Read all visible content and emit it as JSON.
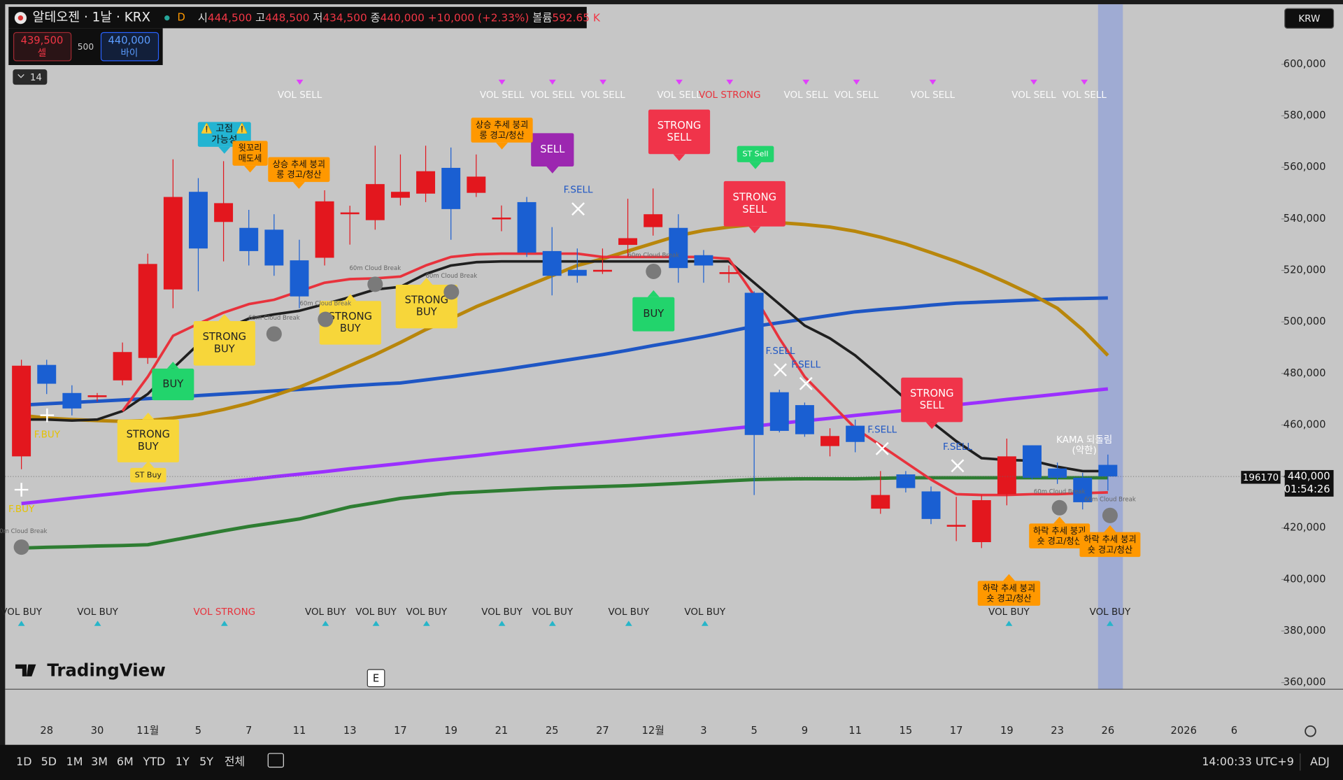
{
  "header": {
    "symbol": "알테오젠 · 1날 · KRX",
    "interval": "D",
    "ohlc": [
      [
        "시",
        "444,500"
      ],
      [
        "고",
        "448,500"
      ],
      [
        "저",
        "434,500"
      ],
      [
        "종",
        "440,000"
      ]
    ],
    "change": "+10,000 (+2.33%)",
    "volume_label": "볼륨",
    "volume": "592.65 K"
  },
  "order": {
    "sell_price": "439,500",
    "sell_label": "셀",
    "spread": "500",
    "buy_price": "440,000",
    "buy_label": "바이"
  },
  "collapse": "14",
  "currency": "KRW",
  "price_labels": {
    "other": "196170",
    "last": "440,000",
    "countdown": "01:54:26"
  },
  "logo": "TradingView",
  "event": "E",
  "toolbar": {
    "ranges": [
      "1D",
      "5D",
      "1M",
      "3M",
      "6M",
      "YTD",
      "1Y",
      "5Y",
      "전체"
    ],
    "clock": "14:00:33 UTC+9",
    "adj": "ADJ"
  },
  "annotations": [
    [
      "VOL SELL"
    ],
    [
      "VOL SELL"
    ],
    [
      "VOL SELL"
    ],
    [
      "VOL SELL"
    ],
    [
      "VOL SELL"
    ],
    [
      "VOL STRONG"
    ],
    [
      "VOL SELL"
    ],
    [
      "VOL SELL"
    ],
    [
      "VOL SELL"
    ],
    [
      "VOL SELL"
    ],
    [
      "VOL SELL"
    ],
    [
      "VOL BUY"
    ],
    [
      "VOL BUY"
    ],
    [
      "VOL STRONG"
    ],
    [
      "VOL BUY"
    ],
    [
      "VOL BUY"
    ],
    [
      "VOL BUY"
    ],
    [
      "VOL BUY"
    ],
    [
      "VOL BUY"
    ],
    [
      "VOL BUY"
    ],
    [
      "VOL BUY"
    ],
    [
      "VOL BUY"
    ],
    [
      "VOL BUY"
    ],
    [
      "STRONG",
      "BUY"
    ],
    [
      "BUY"
    ],
    [
      "STRONG",
      "BUY"
    ],
    [
      "STRONG",
      "BUY"
    ],
    [
      "STRONG",
      "BUY"
    ],
    [
      "BUY"
    ],
    [
      "ST Buy"
    ],
    [
      "STRONG",
      "SELL"
    ],
    [
      "STRONG",
      "SELL"
    ],
    [
      "STRONG",
      "SELL"
    ],
    [
      "SELL"
    ],
    [
      "ST Sell"
    ],
    [
      "⚠️ 고점 ⚠️",
      "가능성"
    ],
    [
      "윗꼬리",
      "매도세"
    ],
    [
      "상승 추세 붕괴",
      "롱 경고/청산"
    ],
    [
      "상승 추세 붕괴",
      "롱 경고/청산"
    ],
    [
      "하락 추세 붕괴",
      "숏 경고/청산"
    ],
    [
      "하락 추세 붕괴",
      "숏 경고/청산"
    ],
    [
      "하락 추세 붕괴",
      "숏 경고/청산"
    ],
    [
      "F.SELL"
    ],
    [
      "F.SELL"
    ],
    [
      "F.SELL"
    ],
    [
      "F.SELL"
    ],
    [
      "F.SELL"
    ],
    [
      "F.BUY"
    ],
    [
      "F.BUY"
    ],
    [
      "KAMA 되돌림",
      "(약한)"
    ],
    [
      "60m Cloud Break"
    ],
    [
      "60m Cloud Break"
    ],
    [
      "60m Cloud Break"
    ],
    [
      "60m Cloud Break"
    ],
    [
      "60m Cloud Break"
    ],
    [
      "60m Cloud Break"
    ],
    [
      "60m Cloud Break"
    ],
    [
      "60m Cloud Break"
    ]
  ],
  "chart_data": {
    "type": "candlestick",
    "categories": [
      null,
      "28",
      null,
      "30",
      null,
      "11월",
      null,
      "5",
      null,
      "7",
      null,
      "11",
      null,
      "13",
      null,
      "17",
      null,
      "19",
      null,
      "21",
      null,
      "25",
      null,
      "27",
      null,
      "12월",
      null,
      "3",
      null,
      "5",
      null,
      "9",
      null,
      "11",
      null,
      "15",
      null,
      "17",
      null,
      "19",
      null,
      "23",
      null,
      "26",
      null,
      null,
      "2026",
      null,
      "6"
    ],
    "open": [
      447800,
      483300,
      472400,
      470800,
      477300,
      486000,
      512600,
      550500,
      538800,
      536500,
      535800,
      523900,
      524900,
      541800,
      539500,
      548200,
      549800,
      559800,
      550100,
      539800,
      546500,
      527500,
      520200,
      519500,
      529900,
      536800,
      536500,
      525900,
      518600,
      511300,
      472700,
      467700,
      451800,
      459700,
      427500,
      440800,
      434200,
      420500,
      414500,
      433100,
      452100,
      443100,
      439500,
      444500,
      null,
      null,
      null,
      null,
      null
    ],
    "high": [
      485300,
      485300,
      475400,
      472400,
      492000,
      526500,
      563100,
      555800,
      562400,
      543500,
      541800,
      531900,
      551100,
      545100,
      568400,
      565000,
      568400,
      567700,
      565000,
      545200,
      548500,
      536800,
      528500,
      528500,
      547800,
      551800,
      541800,
      527900,
      521900,
      511900,
      473700,
      468700,
      458700,
      462100,
      442100,
      442100,
      436100,
      432100,
      432800,
      454700,
      452100,
      445400,
      441400,
      448500,
      null,
      null,
      null,
      null,
      null
    ],
    "low": [
      442800,
      472000,
      463700,
      469100,
      475400,
      483700,
      505300,
      511900,
      523500,
      521900,
      517900,
      505300,
      521900,
      530000,
      535800,
      545200,
      546500,
      531900,
      548500,
      535200,
      525200,
      510300,
      515200,
      518600,
      525200,
      533500,
      515200,
      515200,
      515200,
      432800,
      457100,
      455400,
      447800,
      449400,
      425500,
      433800,
      421500,
      414900,
      412200,
      428800,
      438800,
      437100,
      427200,
      434500,
      null,
      null,
      null,
      null,
      null
    ],
    "close": [
      483000,
      476000,
      466400,
      471500,
      488300,
      522500,
      548500,
      528500,
      546100,
      527500,
      521900,
      509900,
      546800,
      542500,
      553500,
      550500,
      558500,
      543800,
      556400,
      540500,
      526900,
      517900,
      517900,
      520200,
      532500,
      541800,
      520900,
      521900,
      519300,
      456100,
      457700,
      456400,
      455700,
      453400,
      432800,
      435500,
      423500,
      421200,
      430800,
      447800,
      439500,
      439500,
      430000,
      440000,
      null,
      null,
      null,
      null,
      null
    ],
    "up_color": "#e3171e",
    "down_color": "#1a5fd2",
    "overlays": [
      {
        "color": "#2e7d32",
        "width": 4,
        "values": [
          412200,
          412500,
          412700,
          413000,
          413200,
          413500,
          415300,
          417100,
          418900,
          420600,
          422000,
          423500,
          425800,
          428200,
          429800,
          431500,
          432500,
          433500,
          434000,
          434500,
          435000,
          435500,
          435800,
          436100,
          436400,
          436800,
          437300,
          437800,
          438300,
          438800,
          439000,
          439100,
          439100,
          439100,
          439300,
          439500,
          439500,
          439500,
          439500,
          439500,
          439500,
          439500,
          439500,
          439500,
          null,
          null,
          null,
          null,
          null
        ]
      },
      {
        "color": "#9b30ff",
        "width": 4,
        "values": [
          429500,
          430500,
          431600,
          432600,
          433600,
          434700,
          435700,
          436700,
          437800,
          438800,
          439900,
          440900,
          441900,
          443000,
          444000,
          445000,
          446100,
          447100,
          448100,
          449200,
          450200,
          451200,
          452300,
          453300,
          454300,
          455400,
          456400,
          457400,
          458500,
          459500,
          460600,
          461600,
          462600,
          463700,
          464700,
          465700,
          466800,
          467800,
          468800,
          469900,
          470900,
          471900,
          473000,
          474000,
          null,
          null,
          null,
          null,
          null
        ]
      },
      {
        "color": "#1e56c4",
        "width": 4,
        "values": [
          467700,
          468200,
          468700,
          469200,
          469700,
          470200,
          470700,
          471400,
          472000,
          472600,
          473200,
          473800,
          474500,
          475200,
          475800,
          476300,
          477500,
          478700,
          480000,
          481300,
          482800,
          484300,
          485800,
          487300,
          489000,
          490800,
          492500,
          494300,
          496300,
          498300,
          499700,
          501100,
          502500,
          503900,
          504800,
          505600,
          506500,
          507300,
          507700,
          508100,
          508500,
          508900,
          509100,
          509300,
          null,
          null,
          null,
          null,
          null
        ]
      },
      {
        "color": "#b8860b",
        "width": 4,
        "values": [
          463700,
          462700,
          462100,
          461700,
          461400,
          461700,
          462700,
          464000,
          466000,
          468400,
          471400,
          474700,
          478700,
          483000,
          487300,
          492000,
          497000,
          501300,
          505900,
          509900,
          513900,
          517900,
          521900,
          524500,
          527500,
          530500,
          533500,
          535500,
          536800,
          537800,
          538500,
          537800,
          536800,
          535200,
          532900,
          530200,
          526900,
          523500,
          519600,
          515200,
          510600,
          505300,
          497000,
          487000,
          null,
          null,
          null,
          null,
          null
        ]
      },
      {
        "color": "#1f1f1f",
        "width": 3,
        "values": [
          462100,
          462100,
          461700,
          462100,
          465400,
          472000,
          482000,
          491300,
          497000,
          501300,
          502900,
          504300,
          506900,
          509600,
          512600,
          513600,
          518600,
          521900,
          523200,
          523500,
          523500,
          523500,
          523500,
          523500,
          523500,
          523500,
          523500,
          523500,
          523500,
          515200,
          506900,
          498600,
          493600,
          487000,
          478700,
          470000,
          461400,
          453700,
          447100,
          446400,
          446100,
          443800,
          442100,
          442100,
          null,
          null,
          null,
          null,
          null
        ]
      },
      {
        "color": "#e8323c",
        "width": 3,
        "values": [
          null,
          null,
          null,
          null,
          465400,
          478700,
          494600,
          499300,
          503600,
          506900,
          508600,
          511900,
          515200,
          516600,
          516900,
          517600,
          521900,
          525200,
          526200,
          526500,
          526500,
          526500,
          526500,
          525200,
          525200,
          525200,
          525200,
          525200,
          524500,
          510300,
          493600,
          478700,
          468700,
          458700,
          452100,
          445400,
          438800,
          433100,
          432800,
          432800,
          433100,
          433100,
          433500,
          433800,
          null,
          null,
          null,
          null,
          null
        ]
      }
    ],
    "ylim": [
      357400,
      623300
    ],
    "yticks": [
      {
        "value": 360000,
        "label": "360,000"
      },
      {
        "value": 380000,
        "label": "380,000"
      },
      {
        "value": 400000,
        "label": "400,000"
      },
      {
        "value": 420000,
        "label": "420,000"
      },
      {
        "value": 440000,
        "label": "440,000"
      },
      {
        "value": 460000,
        "label": "460,000"
      },
      {
        "value": 480000,
        "label": "480,000"
      },
      {
        "value": 500000,
        "label": "500,000"
      },
      {
        "value": 520000,
        "label": "520,000"
      },
      {
        "value": 540000,
        "label": "540,000"
      },
      {
        "value": 560000,
        "label": "560,000"
      },
      {
        "value": 580000,
        "label": "580,000"
      },
      {
        "value": 600000,
        "label": "600,000"
      }
    ]
  }
}
